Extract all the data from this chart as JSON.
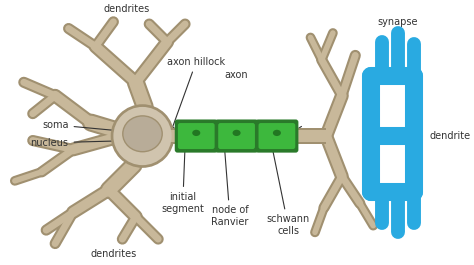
{
  "background_color": "#ffffff",
  "soma_color": "#c8b89a",
  "soma_fill": "#d0c4ae",
  "nucleus_fill": "#b8ac98",
  "axon_color": "#c8b89a",
  "branch_color": "#c8b89a",
  "branch_outline": "#a09070",
  "schwann_outer": "#2a7a2a",
  "schwann_fill": "#3db83d",
  "schwann_nucleus": "#227722",
  "synapse_color": "#29aae1",
  "text_color": "#333333",
  "labels": {
    "dendrites_top": "dendrites",
    "dendrites_bottom": "dendrites",
    "soma": "soma",
    "nucleus": "nucleus",
    "axon_hillock": "axon hillock",
    "axon": "axon",
    "initial_segment": "initial\nsegment",
    "node_of_ranvier": "node of\nRanvier",
    "schwann_cells": "schwann\ncells",
    "synapse": "synapse",
    "dendrite": "dendrite"
  },
  "figsize": [
    4.74,
    2.65
  ],
  "dpi": 100
}
